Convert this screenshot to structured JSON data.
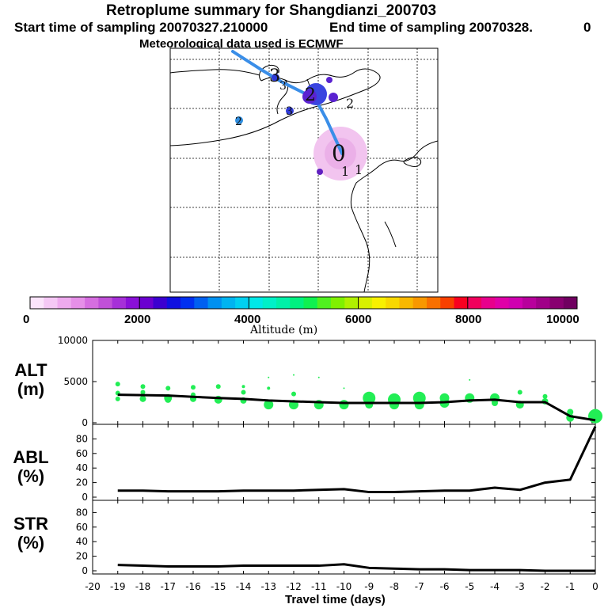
{
  "header": {
    "title": "Retroplume summary for Shangdianzi_200703",
    "start_label": "Start time of sampling 20070327.210000",
    "end_label": "End time of sampling 20070328.",
    "end_suffix": "0",
    "met_label": "Meteorological data used is ECMWF"
  },
  "colorbar": {
    "title": "Altitude (m)",
    "ticks": [
      "0",
      "2000",
      "4000",
      "6000",
      "8000",
      "10000"
    ]
  },
  "panels": {
    "alt_label": "ALT\n(m)",
    "abl_label": "ABL\n(%)",
    "str_label": "STR\n(%)",
    "x_title": "Travel time (days)"
  },
  "map": {
    "day_markers": [
      "0",
      "1",
      "1",
      "2",
      "2",
      "3",
      "3",
      "2",
      "3"
    ]
  },
  "chart_data": [
    {
      "type": "line",
      "title": "ALT (m)",
      "xlabel": "Travel time (days)",
      "ylabel": "ALT (m)",
      "xlim": [
        -20,
        0
      ],
      "ylim": [
        0,
        10000
      ],
      "yticks": [
        0,
        5000,
        10000
      ],
      "x": [
        -19,
        -18,
        -17,
        -16,
        -15,
        -14,
        -13,
        -12,
        -11,
        -10,
        -9,
        -8,
        -7,
        -6,
        -5,
        -4,
        -3,
        -2,
        -1,
        0
      ],
      "series": [
        {
          "name": "mean altitude",
          "values": [
            3400,
            3350,
            3300,
            3150,
            3000,
            2900,
            2700,
            2600,
            2500,
            2400,
            2400,
            2400,
            2400,
            2500,
            2700,
            2800,
            2500,
            2500,
            800,
            300
          ]
        }
      ],
      "scatter": [
        {
          "x": -19,
          "y": 4700,
          "s": 3
        },
        {
          "x": -19,
          "y": 3600,
          "s": 3
        },
        {
          "x": -19,
          "y": 2900,
          "s": 3
        },
        {
          "x": -18,
          "y": 4400,
          "s": 3
        },
        {
          "x": -18,
          "y": 3700,
          "s": 3
        },
        {
          "x": -18,
          "y": 2900,
          "s": 4
        },
        {
          "x": -17,
          "y": 4200,
          "s": 3
        },
        {
          "x": -17,
          "y": 3000,
          "s": 5
        },
        {
          "x": -17,
          "y": 2800,
          "s": 4
        },
        {
          "x": -16,
          "y": 4300,
          "s": 3
        },
        {
          "x": -16,
          "y": 3400,
          "s": 3
        },
        {
          "x": -16,
          "y": 2900,
          "s": 4
        },
        {
          "x": -15,
          "y": 4400,
          "s": 3
        },
        {
          "x": -15,
          "y": 2800,
          "s": 5
        },
        {
          "x": -14,
          "y": 4400,
          "s": 2
        },
        {
          "x": -14,
          "y": 3700,
          "s": 3
        },
        {
          "x": -14,
          "y": 2700,
          "s": 4
        },
        {
          "x": -13,
          "y": 5500,
          "s": 1
        },
        {
          "x": -13,
          "y": 4200,
          "s": 2
        },
        {
          "x": -13,
          "y": 2200,
          "s": 6
        },
        {
          "x": -12,
          "y": 5800,
          "s": 1
        },
        {
          "x": -12,
          "y": 3500,
          "s": 3
        },
        {
          "x": -12,
          "y": 2200,
          "s": 6
        },
        {
          "x": -11,
          "y": 5500,
          "s": 1
        },
        {
          "x": -11,
          "y": 2200,
          "s": 6
        },
        {
          "x": -10,
          "y": 4200,
          "s": 1
        },
        {
          "x": -10,
          "y": 2200,
          "s": 6
        },
        {
          "x": -9,
          "y": 3000,
          "s": 8
        },
        {
          "x": -9,
          "y": 2200,
          "s": 5
        },
        {
          "x": -8,
          "y": 2800,
          "s": 8
        },
        {
          "x": -8,
          "y": 2200,
          "s": 6
        },
        {
          "x": -7,
          "y": 3000,
          "s": 8
        },
        {
          "x": -7,
          "y": 2200,
          "s": 6
        },
        {
          "x": -6,
          "y": 3000,
          "s": 6
        },
        {
          "x": -6,
          "y": 2400,
          "s": 6
        },
        {
          "x": -5,
          "y": 5200,
          "s": 1
        },
        {
          "x": -5,
          "y": 3000,
          "s": 6
        },
        {
          "x": -4,
          "y": 3000,
          "s": 6
        },
        {
          "x": -4,
          "y": 2400,
          "s": 4
        },
        {
          "x": -3,
          "y": 3700,
          "s": 3
        },
        {
          "x": -3,
          "y": 2200,
          "s": 5
        },
        {
          "x": -2,
          "y": 3200,
          "s": 3
        },
        {
          "x": -2,
          "y": 2600,
          "s": 4
        },
        {
          "x": -1,
          "y": 1300,
          "s": 4
        },
        {
          "x": -1,
          "y": 600,
          "s": 5
        },
        {
          "x": 0,
          "y": 800,
          "s": 9
        }
      ]
    },
    {
      "type": "line",
      "title": "ABL (%)",
      "xlabel": "Travel time (days)",
      "ylabel": "ABL (%)",
      "xlim": [
        -20,
        0
      ],
      "ylim": [
        0,
        100
      ],
      "yticks": [
        0,
        20,
        40,
        60,
        80
      ],
      "x": [
        -19,
        -18,
        -17,
        -16,
        -15,
        -14,
        -13,
        -12,
        -11,
        -10,
        -9,
        -8,
        -7,
        -6,
        -5,
        -4,
        -3,
        -2,
        -1,
        0
      ],
      "series": [
        {
          "name": "ABL fraction",
          "values": [
            9,
            9,
            8,
            8,
            8,
            9,
            9,
            9,
            10,
            11,
            7,
            7,
            8,
            9,
            9,
            13,
            10,
            20,
            24,
            97
          ]
        }
      ]
    },
    {
      "type": "line",
      "title": "STR (%)",
      "xlabel": "Travel time (days)",
      "ylabel": "STR (%)",
      "xlim": [
        -20,
        0
      ],
      "ylim": [
        0,
        100
      ],
      "yticks": [
        0,
        20,
        40,
        60,
        80
      ],
      "xticks": [
        -20,
        -19,
        -18,
        -17,
        -16,
        -15,
        -14,
        -13,
        -12,
        -11,
        -10,
        -9,
        -8,
        -7,
        -6,
        -5,
        -4,
        -3,
        -2,
        -1,
        0
      ],
      "x": [
        -19,
        -18,
        -17,
        -16,
        -15,
        -14,
        -13,
        -12,
        -11,
        -10,
        -9,
        -8,
        -7,
        -6,
        -5,
        -4,
        -3,
        -2,
        -1,
        0
      ],
      "series": [
        {
          "name": "stratospheric fraction",
          "values": [
            8,
            7,
            6,
            6,
            6,
            7,
            7,
            7,
            7,
            9,
            4,
            3,
            2,
            2,
            1,
            1,
            1,
            0,
            0,
            0
          ]
        }
      ]
    }
  ]
}
